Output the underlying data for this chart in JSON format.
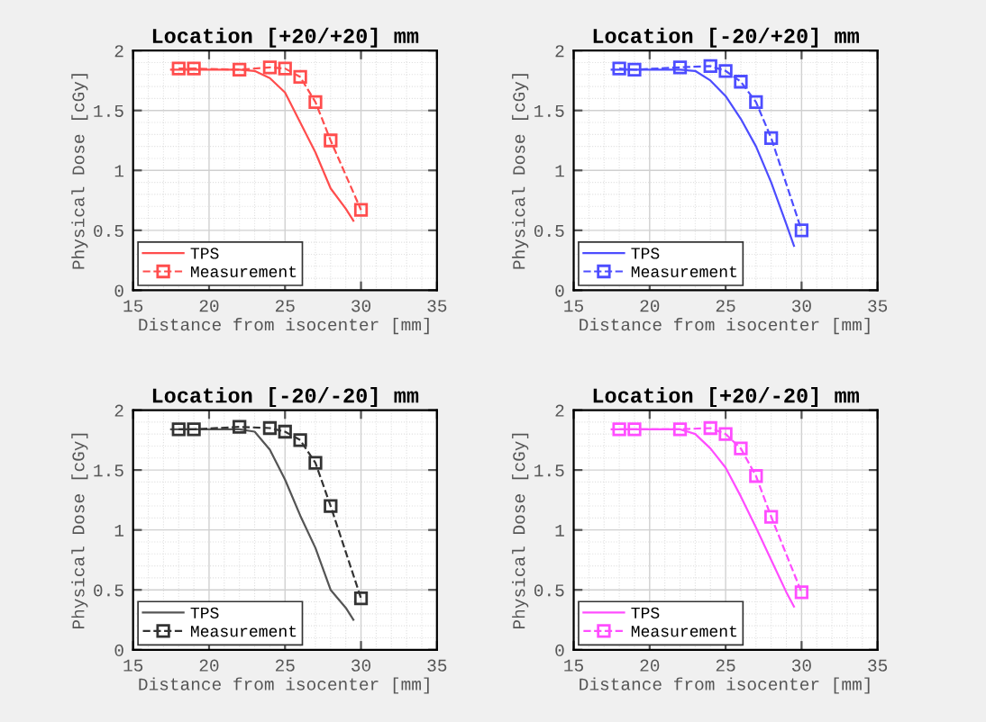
{
  "chart_data": [
    {
      "type": "line",
      "title": "Location [+20/+20] mm",
      "xlabel": "Distance from isocenter [mm]",
      "ylabel": "Physical Dose [cGy]",
      "xlim": [
        15,
        35
      ],
      "ylim": [
        0,
        2
      ],
      "xticks": [
        15,
        20,
        25,
        30,
        35
      ],
      "yticks": [
        0,
        0.5,
        1,
        1.5,
        2
      ],
      "grid": true,
      "legend": "bottom left",
      "series": [
        {
          "name": "TPS",
          "color": "#ff4d4d",
          "line_style": "solid",
          "marker": "none",
          "x": [
            17.5,
            22,
            23,
            24,
            25,
            26,
            27,
            28,
            29,
            29.5
          ],
          "values": [
            1.84,
            1.84,
            1.83,
            1.77,
            1.65,
            1.4,
            1.15,
            0.85,
            0.68,
            0.58
          ]
        },
        {
          "name": "Measurement",
          "color": "#ff4d4d",
          "line_style": "dashed",
          "marker": "square",
          "x": [
            18,
            19,
            22,
            24,
            25,
            26,
            27,
            28,
            30
          ],
          "values": [
            1.85,
            1.85,
            1.84,
            1.86,
            1.85,
            1.78,
            1.57,
            1.25,
            0.67
          ]
        }
      ]
    },
    {
      "type": "line",
      "title": "Location [-20/+20] mm",
      "xlabel": "Distance from isocenter [mm]",
      "ylabel": "Physical Dose [cGy]",
      "xlim": [
        15,
        35
      ],
      "ylim": [
        0,
        2
      ],
      "xticks": [
        15,
        20,
        25,
        30,
        35
      ],
      "yticks": [
        0,
        0.5,
        1,
        1.5,
        2
      ],
      "grid": true,
      "legend": "bottom left",
      "series": [
        {
          "name": "TPS",
          "color": "#4d4dff",
          "line_style": "solid",
          "marker": "none",
          "x": [
            17.5,
            22,
            23,
            24,
            25,
            26,
            27,
            28,
            29,
            29.5
          ],
          "values": [
            1.84,
            1.84,
            1.83,
            1.75,
            1.62,
            1.43,
            1.2,
            0.9,
            0.55,
            0.37
          ]
        },
        {
          "name": "Measurement",
          "color": "#4d4dff",
          "line_style": "dashed",
          "marker": "square",
          "x": [
            18,
            19,
            22,
            24,
            25,
            26,
            27,
            28,
            30
          ],
          "values": [
            1.85,
            1.84,
            1.86,
            1.87,
            1.83,
            1.74,
            1.57,
            1.27,
            0.5
          ]
        }
      ]
    },
    {
      "type": "line",
      "title": "Location [-20/-20] mm",
      "xlabel": "Distance from isocenter [mm]",
      "ylabel": "Physical Dose [cGy]",
      "xlim": [
        15,
        35
      ],
      "ylim": [
        0,
        2
      ],
      "xticks": [
        15,
        20,
        25,
        30,
        35
      ],
      "yticks": [
        0,
        0.5,
        1,
        1.5,
        2
      ],
      "grid": true,
      "legend": "bottom left",
      "series": [
        {
          "name": "TPS",
          "color": "#555555",
          "line_style": "solid",
          "marker": "none",
          "x": [
            17.5,
            22,
            23,
            24,
            25,
            26,
            27,
            28,
            29,
            29.5
          ],
          "values": [
            1.84,
            1.84,
            1.82,
            1.67,
            1.42,
            1.12,
            0.85,
            0.5,
            0.35,
            0.25
          ]
        },
        {
          "name": "Measurement",
          "color": "#333333",
          "line_style": "dashed",
          "marker": "square",
          "x": [
            18,
            19,
            22,
            24,
            25,
            26,
            27,
            28,
            30
          ],
          "values": [
            1.84,
            1.84,
            1.86,
            1.85,
            1.82,
            1.75,
            1.56,
            1.2,
            0.43
          ]
        }
      ]
    },
    {
      "type": "line",
      "title": "Location [+20/-20] mm",
      "xlabel": "Distance from isocenter [mm]",
      "ylabel": "Physical Dose [cGy]",
      "xlim": [
        15,
        35
      ],
      "ylim": [
        0,
        2
      ],
      "xticks": [
        15,
        20,
        25,
        30,
        35
      ],
      "yticks": [
        0,
        0.5,
        1,
        1.5,
        2
      ],
      "grid": true,
      "legend": "bottom left",
      "series": [
        {
          "name": "TPS",
          "color": "#ff4dff",
          "line_style": "solid",
          "marker": "none",
          "x": [
            17.5,
            22,
            23,
            24,
            25,
            26,
            27,
            28,
            29,
            29.5
          ],
          "values": [
            1.84,
            1.84,
            1.8,
            1.68,
            1.52,
            1.28,
            1.02,
            0.75,
            0.48,
            0.36
          ]
        },
        {
          "name": "Measurement",
          "color": "#ff4dff",
          "line_style": "dashed",
          "marker": "square",
          "x": [
            18,
            19,
            22,
            24,
            25,
            26,
            27,
            28,
            30
          ],
          "values": [
            1.84,
            1.84,
            1.84,
            1.85,
            1.8,
            1.68,
            1.45,
            1.11,
            0.48
          ]
        }
      ]
    }
  ]
}
